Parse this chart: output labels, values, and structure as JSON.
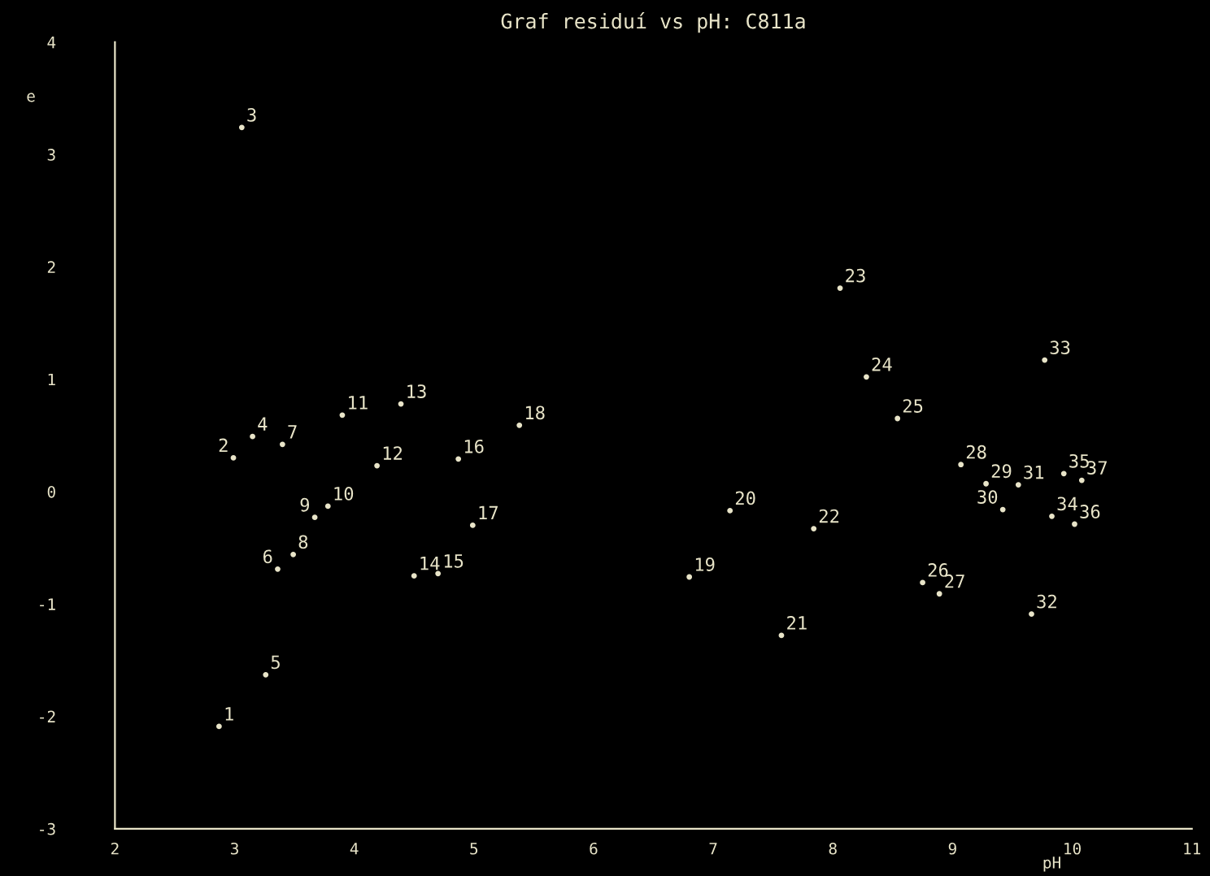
{
  "chart_data": {
    "type": "scatter",
    "title": "Graf residuí vs pH: C811a",
    "xlabel": "pH",
    "ylabel": "e",
    "xlim": [
      2,
      11
    ],
    "ylim": [
      -3,
      4
    ],
    "xticks": [
      2,
      3,
      4,
      5,
      6,
      7,
      8,
      9,
      10,
      11
    ],
    "yticks": [
      -3,
      -2,
      -1,
      0,
      1,
      2,
      3,
      4
    ],
    "grid": false,
    "legend": false,
    "marker": "circle",
    "series": [
      {
        "color": "#e8e4c8",
        "x": [
          2.87,
          2.99,
          3.06,
          3.15,
          3.26,
          3.36,
          3.4,
          3.49,
          3.67,
          3.78,
          3.9,
          4.19,
          4.39,
          4.5,
          4.7,
          4.87,
          4.99,
          5.38,
          6.8,
          7.14,
          7.57,
          7.84,
          8.06,
          8.28,
          8.54,
          8.75,
          8.89,
          9.07,
          9.28,
          9.42,
          9.55,
          9.66,
          9.77,
          9.83,
          9.93,
          10.02,
          10.08
        ],
        "values": [
          -2.09,
          0.3,
          3.24,
          0.49,
          -1.63,
          -0.69,
          0.42,
          -0.56,
          -0.23,
          -0.13,
          0.68,
          0.23,
          0.78,
          -0.75,
          -0.73,
          0.29,
          -0.3,
          0.59,
          -0.76,
          -0.17,
          -1.28,
          -0.33,
          1.81,
          1.02,
          0.65,
          -0.81,
          -0.91,
          0.24,
          0.07,
          -0.16,
          0.06,
          -1.09,
          1.17,
          -0.22,
          0.16,
          -0.29,
          0.1
        ]
      }
    ],
    "annotations": [
      {
        "text": "1",
        "x": 2.87,
        "y": -2.09
      },
      {
        "text": "2",
        "x": 2.99,
        "y": 0.3
      },
      {
        "text": "3",
        "x": 3.06,
        "y": 3.24
      },
      {
        "text": "4",
        "x": 3.15,
        "y": 0.49
      },
      {
        "text": "5",
        "x": 3.26,
        "y": -1.63
      },
      {
        "text": "6",
        "x": 3.36,
        "y": -0.69
      },
      {
        "text": "7",
        "x": 3.4,
        "y": 0.42
      },
      {
        "text": "8",
        "x": 3.49,
        "y": -0.56
      },
      {
        "text": "9",
        "x": 3.67,
        "y": -0.23
      },
      {
        "text": "10",
        "x": 3.78,
        "y": -0.13
      },
      {
        "text": "11",
        "x": 3.9,
        "y": 0.68
      },
      {
        "text": "12",
        "x": 4.19,
        "y": 0.23
      },
      {
        "text": "13",
        "x": 4.39,
        "y": 0.78
      },
      {
        "text": "14",
        "x": 4.5,
        "y": -0.75
      },
      {
        "text": "15",
        "x": 4.7,
        "y": -0.73
      },
      {
        "text": "16",
        "x": 4.87,
        "y": 0.29
      },
      {
        "text": "17",
        "x": 4.99,
        "y": -0.3
      },
      {
        "text": "18",
        "x": 5.38,
        "y": 0.59
      },
      {
        "text": "19",
        "x": 6.8,
        "y": -0.76
      },
      {
        "text": "20",
        "x": 7.14,
        "y": -0.17
      },
      {
        "text": "21",
        "x": 7.57,
        "y": -1.28
      },
      {
        "text": "22",
        "x": 7.84,
        "y": -0.33
      },
      {
        "text": "23",
        "x": 8.06,
        "y": 1.81
      },
      {
        "text": "24",
        "x": 8.28,
        "y": 1.02
      },
      {
        "text": "25",
        "x": 8.54,
        "y": 0.65
      },
      {
        "text": "26",
        "x": 8.75,
        "y": -0.81
      },
      {
        "text": "27",
        "x": 8.89,
        "y": -0.91
      },
      {
        "text": "28",
        "x": 9.07,
        "y": 0.24
      },
      {
        "text": "29",
        "x": 9.28,
        "y": 0.07
      },
      {
        "text": "30",
        "x": 9.42,
        "y": -0.16
      },
      {
        "text": "31",
        "x": 9.55,
        "y": 0.06
      },
      {
        "text": "32",
        "x": 9.66,
        "y": -1.09
      },
      {
        "text": "33",
        "x": 9.77,
        "y": 1.17
      },
      {
        "text": "34",
        "x": 9.83,
        "y": -0.22
      },
      {
        "text": "35",
        "x": 9.93,
        "y": 0.16
      },
      {
        "text": "36",
        "x": 10.02,
        "y": -0.29
      },
      {
        "text": "37",
        "x": 10.08,
        "y": 0.1
      }
    ]
  }
}
